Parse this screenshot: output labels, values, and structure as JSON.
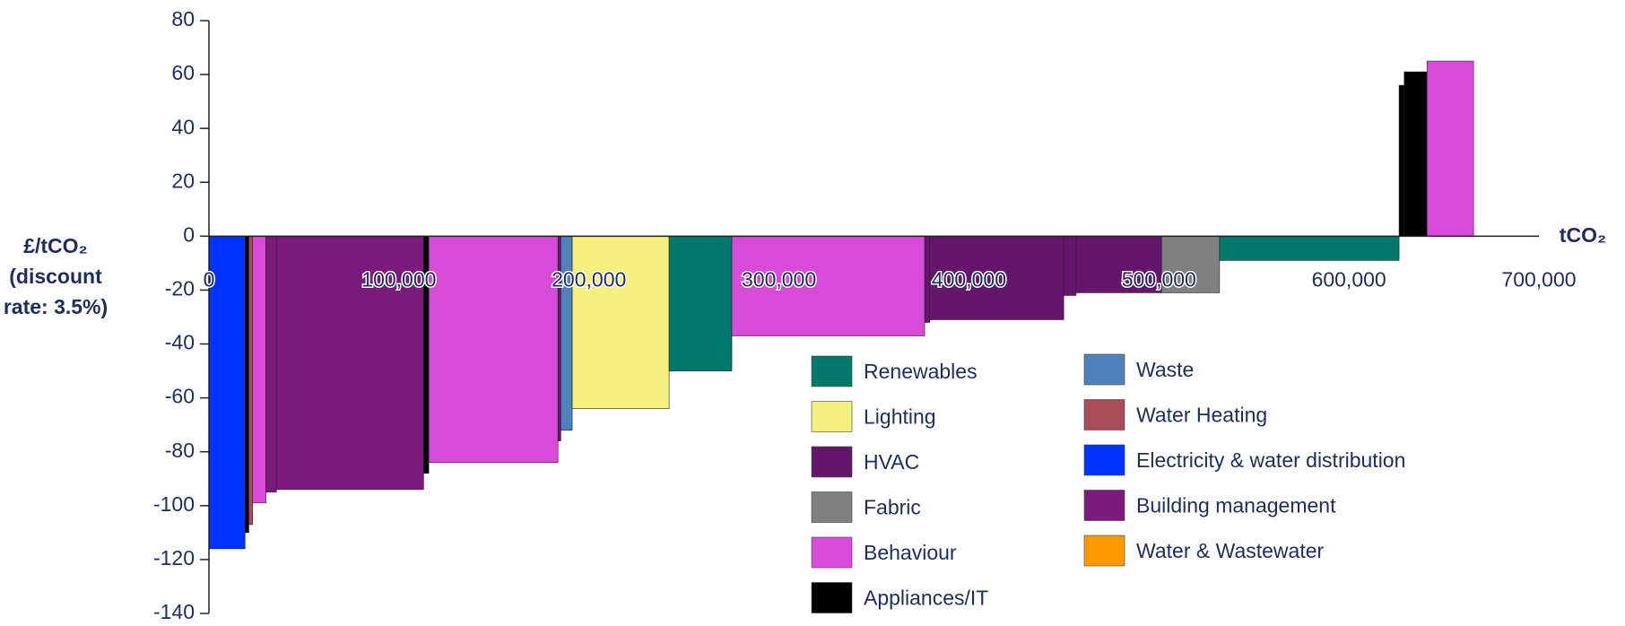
{
  "chart_data": {
    "type": "cost_curve",
    "x_label": "tCO₂",
    "y_label": [
      "£/tCO₂",
      "(discount",
      "rate: 3.5%)"
    ],
    "xlim": [
      0,
      700000
    ],
    "ylim": [
      -140,
      80
    ],
    "xticks": [
      0,
      {
        "value": 100000,
        "label": "100,000"
      },
      {
        "value": 200000,
        "label": "200,000"
      },
      {
        "value": 300000,
        "label": "300,000"
      },
      {
        "value": 400000,
        "label": "400,000"
      },
      {
        "value": 500000,
        "label": "500,000"
      },
      {
        "value": 600000,
        "label": "600,000"
      },
      {
        "value": 700000,
        "label": "700,000"
      }
    ],
    "yticks": [
      -140,
      -120,
      -100,
      -80,
      -60,
      -40,
      -20,
      0,
      20,
      40,
      60,
      80
    ],
    "series": [
      {
        "name": "Renewables",
        "color": "#00796b"
      },
      {
        "name": "Lighting",
        "color": "#f6f07f"
      },
      {
        "name": "HVAC",
        "color": "#63166b"
      },
      {
        "name": "Fabric",
        "color": "#808080"
      },
      {
        "name": "Behaviour",
        "color": "#d84ad8"
      },
      {
        "name": "Appliances/IT",
        "color": "#000000"
      },
      {
        "name": "Waste",
        "color": "#4f81bd"
      },
      {
        "name": "Water Heating",
        "color": "#a94d5a"
      },
      {
        "name": "Electricity & water distribution",
        "color": "#0033ff"
      },
      {
        "name": "Building management",
        "color": "#7b1a7b"
      },
      {
        "name": "Water & Wastewater",
        "color": "#ff9900"
      }
    ],
    "bars": [
      {
        "group": "Electricity & water distribution",
        "width": 19000,
        "value": -116
      },
      {
        "group": "Appliances/IT",
        "width": 2000,
        "value": -110
      },
      {
        "group": "Water Heating",
        "width": 2000,
        "value": -107
      },
      {
        "group": "Behaviour",
        "width": 7000,
        "value": -99
      },
      {
        "group": "Building management",
        "width": 5500,
        "value": -95
      },
      {
        "group": "Building management",
        "width": 77500,
        "value": -94
      },
      {
        "group": "Appliances/IT",
        "width": 2700,
        "value": -88
      },
      {
        "group": "Behaviour",
        "width": 68000,
        "value": -84
      },
      {
        "group": "HVAC",
        "width": 1500,
        "value": -76
      },
      {
        "group": "Waste",
        "width": 6000,
        "value": -72
      },
      {
        "group": "Lighting",
        "width": 51000,
        "value": -64
      },
      {
        "group": "Renewables",
        "width": 33000,
        "value": -50
      },
      {
        "group": "Behaviour",
        "width": 101500,
        "value": -37
      },
      {
        "group": "HVAC",
        "width": 2700,
        "value": -32
      },
      {
        "group": "HVAC",
        "width": 70500,
        "value": -31
      },
      {
        "group": "HVAC",
        "width": 6500,
        "value": -22
      },
      {
        "group": "HVAC",
        "width": 45000,
        "value": -21
      },
      {
        "group": "Fabric",
        "width": 30500,
        "value": -21
      },
      {
        "group": "Renewables",
        "width": 94500,
        "value": -9
      },
      {
        "group": "Appliances/IT",
        "width": 2700,
        "value": 56
      },
      {
        "group": "Appliances/IT",
        "width": 12000,
        "value": 61
      },
      {
        "group": "Behaviour",
        "width": 24500,
        "value": 65
      }
    ]
  }
}
